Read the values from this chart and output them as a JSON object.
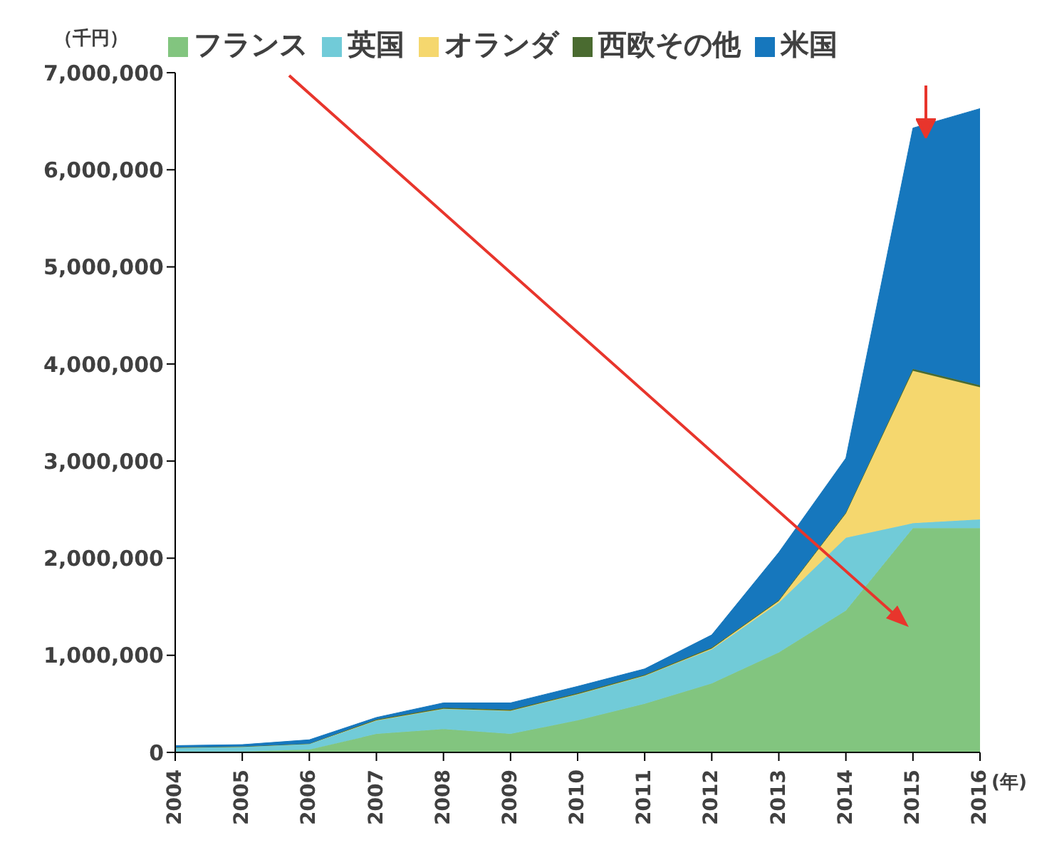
{
  "chart_data": {
    "type": "area",
    "stacked": true,
    "ylabel": "（千円）",
    "xlabel": "(年)",
    "x": [
      2004,
      2005,
      2006,
      2007,
      2008,
      2009,
      2010,
      2011,
      2012,
      2013,
      2014,
      2015,
      2016
    ],
    "xlim": [
      2004,
      2016
    ],
    "xticks": [
      2004,
      2005,
      2006,
      2007,
      2008,
      2009,
      2010,
      2011,
      2012,
      2013,
      2014,
      2015,
      2016
    ],
    "ylim": [
      0,
      7000000
    ],
    "yticks": [
      {
        "value": 0,
        "label": "0"
      },
      {
        "value": 1000000,
        "label": "1,000,000"
      },
      {
        "value": 2000000,
        "label": "2,000,000"
      },
      {
        "value": 3000000,
        "label": "3,000,000"
      },
      {
        "value": 4000000,
        "label": "4,000,000"
      },
      {
        "value": 5000000,
        "label": "5,000,000"
      },
      {
        "value": 6000000,
        "label": "6,000,000"
      },
      {
        "value": 7000000,
        "label": "7,000,000"
      }
    ],
    "legend": "top",
    "grid": false,
    "series": [
      {
        "name": "フランス",
        "color": "#82c57f",
        "values": [
          10000,
          10000,
          30000,
          190000,
          240000,
          190000,
          330000,
          500000,
          710000,
          1030000,
          1460000,
          2310000,
          2310000
        ]
      },
      {
        "name": "英国",
        "color": "#71cbd8",
        "values": [
          40000,
          50000,
          60000,
          140000,
          210000,
          240000,
          270000,
          290000,
          350000,
          510000,
          750000,
          50000,
          90000
        ]
      },
      {
        "name": "オランダ",
        "color": "#f5d76e",
        "values": [
          0,
          0,
          0,
          0,
          0,
          0,
          0,
          0,
          10000,
          20000,
          250000,
          1570000,
          1360000
        ]
      },
      {
        "name": "西欧その他",
        "color": "#4a6b30",
        "values": [
          0,
          0,
          0,
          10000,
          10000,
          10000,
          10000,
          10000,
          10000,
          10000,
          10000,
          20000,
          20000
        ]
      },
      {
        "name": "米国",
        "color": "#1677bd",
        "values": [
          20000,
          20000,
          40000,
          20000,
          50000,
          70000,
          70000,
          60000,
          130000,
          490000,
          560000,
          2480000,
          2850000
        ]
      }
    ]
  }
}
